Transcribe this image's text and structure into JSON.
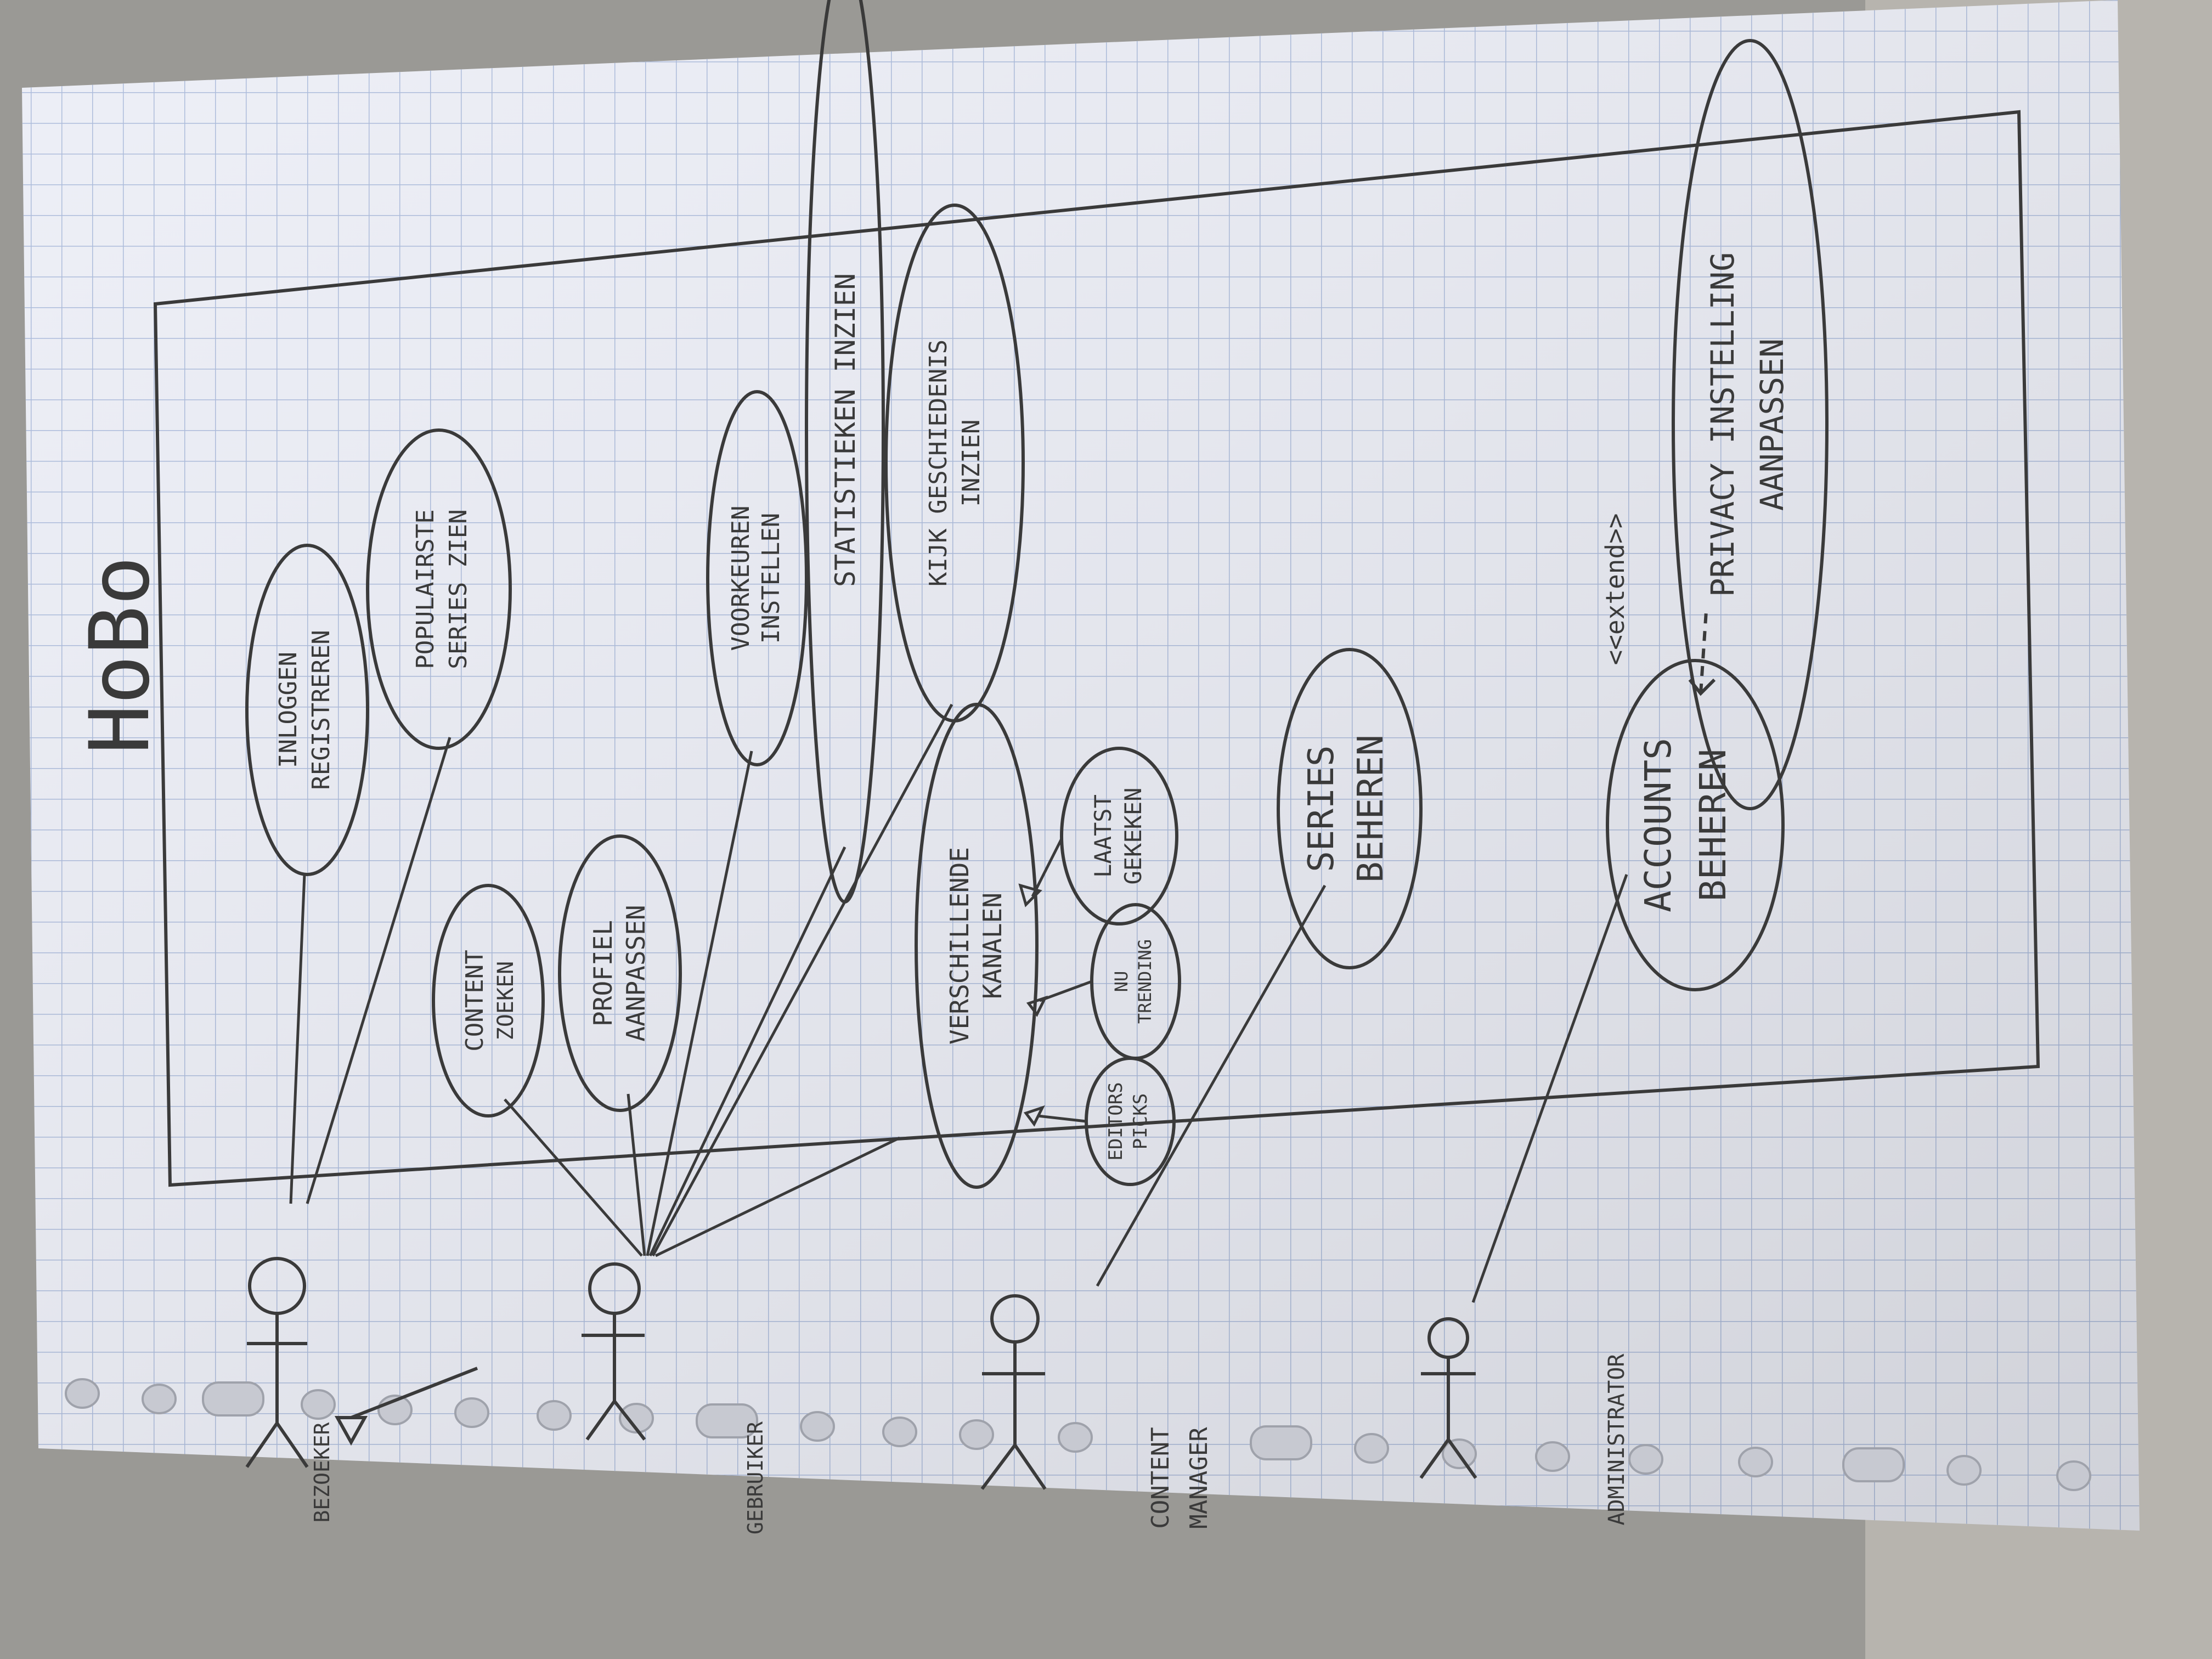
{
  "diagram": {
    "title": "HoBo",
    "actors": {
      "bezoeker": "BEZOEKER",
      "gebruiker": "GEBRUIKER",
      "content_manager_line1": "CONTENT",
      "content_manager_line2": "MANAGER",
      "administrator": "ADMINISTRATOR"
    },
    "use_cases": {
      "inloggen": [
        "INLOGGEN",
        "REGISTREREN"
      ],
      "populairste": [
        "POPULAIRSTE",
        "SERIES ZIEN"
      ],
      "content_zoeken": [
        "CONTENT",
        "ZOEKEN"
      ],
      "profiel": [
        "PROFIEL",
        "AANPASSEN"
      ],
      "voorkeuren": [
        "VOORKEUREN",
        "INSTELLEN"
      ],
      "statistieken": [
        "STATISTIEKEN INZIEN"
      ],
      "kijkgeschiedenis": [
        "KIJK GESCHIEDENIS",
        "INZIEN"
      ],
      "kanalen": [
        "VERSCHILLENDE",
        "KANALEN"
      ],
      "laatst_gekeken": [
        "LAATST",
        "GEKEKEN"
      ],
      "nu_trending": [
        "NU",
        "TRENDING"
      ],
      "editors_picks": [
        "EDITORS",
        "PICKS"
      ],
      "series_beheren": [
        "SERIES",
        "BEHEREN"
      ],
      "accounts_beheren": [
        "ACCOUNTS",
        "BEHEREN"
      ],
      "privacy": [
        "PRIVACY INSTELLING",
        "AANPASSEN"
      ]
    },
    "extend_label": "<<extend>>"
  },
  "colors": {
    "paper": "#eceef6",
    "grid": "#a9b9da",
    "pencil": "#3a3a3a"
  }
}
